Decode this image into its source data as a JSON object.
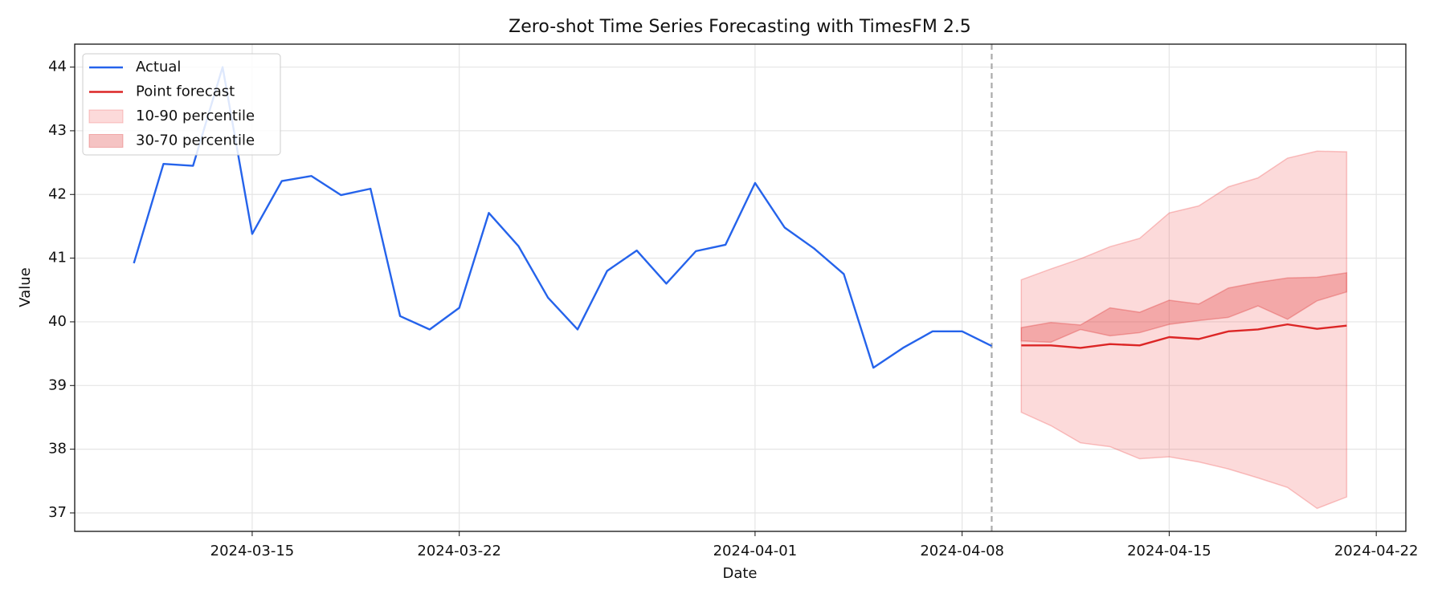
{
  "chart_data": {
    "type": "line",
    "title": "Zero-shot Time Series Forecasting with TimesFM 2.5",
    "x_label": "Date",
    "y_label": "Value",
    "xlim": [
      "2024-03-09",
      "2024-04-23"
    ],
    "xticks": [
      "2024-03-15",
      "2024-03-22",
      "2024-04-01",
      "2024-04-08",
      "2024-04-15",
      "2024-04-22"
    ],
    "ylim": [
      36.71,
      44.36
    ],
    "yticks": [
      37,
      38,
      39,
      40,
      41,
      42,
      43,
      44
    ],
    "grid": true,
    "legend": "upper left",
    "vline": "2024-04-09",
    "series": [
      {
        "name": "Actual",
        "color": "#2563eb",
        "x": [
          "2024-03-11",
          "2024-03-12",
          "2024-03-13",
          "2024-03-14",
          "2024-03-15",
          "2024-03-16",
          "2024-03-17",
          "2024-03-18",
          "2024-03-19",
          "2024-03-20",
          "2024-03-21",
          "2024-03-22",
          "2024-03-23",
          "2024-03-24",
          "2024-03-25",
          "2024-03-26",
          "2024-03-27",
          "2024-03-28",
          "2024-03-29",
          "2024-03-30",
          "2024-03-31",
          "2024-04-01",
          "2024-04-02",
          "2024-04-03",
          "2024-04-04",
          "2024-04-05",
          "2024-04-06",
          "2024-04-07",
          "2024-04-08",
          "2024-04-09"
        ],
        "values": [
          40.92,
          42.48,
          42.45,
          44.0,
          41.38,
          42.21,
          42.29,
          41.99,
          42.09,
          40.09,
          39.88,
          40.22,
          41.71,
          41.19,
          40.38,
          39.88,
          40.8,
          41.12,
          40.6,
          41.11,
          41.21,
          42.18,
          41.48,
          41.15,
          40.75,
          39.28,
          39.59,
          39.85,
          39.85,
          39.62
        ]
      },
      {
        "name": "Point forecast",
        "color": "#dc2626",
        "x": [
          "2024-04-10",
          "2024-04-11",
          "2024-04-12",
          "2024-04-13",
          "2024-04-14",
          "2024-04-15",
          "2024-04-16",
          "2024-04-17",
          "2024-04-18",
          "2024-04-19",
          "2024-04-20",
          "2024-04-21"
        ],
        "values": [
          39.63,
          39.63,
          39.59,
          39.65,
          39.63,
          39.76,
          39.73,
          39.85,
          39.88,
          39.96,
          39.89,
          39.94
        ]
      }
    ],
    "bands": [
      {
        "name": "10-90 percentile",
        "color": "#ef4444",
        "alpha": 0.2,
        "lower": [
          38.58,
          38.37,
          38.1,
          38.04,
          37.85,
          37.88,
          37.8,
          37.69,
          37.55,
          37.4,
          37.07,
          37.25
        ],
        "upper": [
          40.66,
          40.83,
          40.99,
          41.18,
          41.31,
          41.71,
          41.82,
          42.12,
          42.26,
          42.57,
          42.68,
          42.67
        ]
      },
      {
        "name": "30-70 percentile",
        "color": "#dc2626",
        "alpha": 0.28,
        "lower": [
          39.7,
          39.68,
          39.88,
          39.78,
          39.83,
          39.96,
          40.02,
          40.07,
          40.25,
          40.04,
          40.33,
          40.47
        ],
        "upper": [
          39.91,
          39.99,
          39.95,
          40.22,
          40.15,
          40.34,
          40.28,
          40.53,
          40.62,
          40.69,
          40.7,
          40.77
        ]
      }
    ]
  }
}
